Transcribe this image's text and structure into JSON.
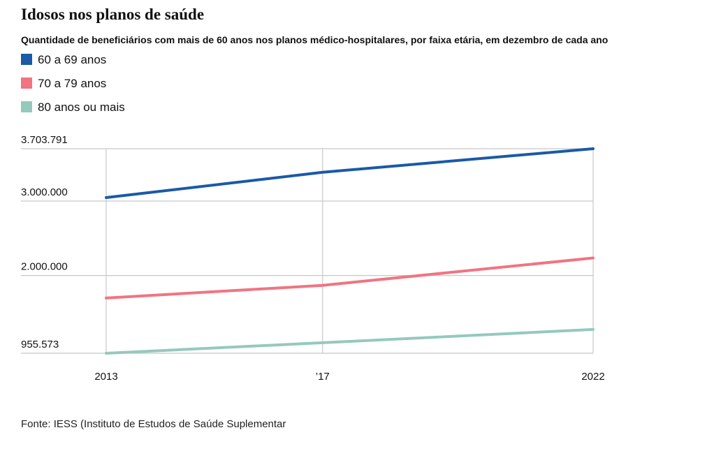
{
  "chart_data": {
    "type": "line",
    "title": "Idosos nos planos de saúde",
    "subtitle": "Quantidade de beneficiários com mais de 60 anos nos planos médico-hospitalares, por faixa etária, em dezembro de cada ano",
    "x": [
      2013,
      2017,
      2022
    ],
    "xlim": [
      2013,
      2022
    ],
    "xticks": [
      2013,
      {
        "value": 2017,
        "label": "’17"
      },
      2022
    ],
    "ylim": [
      955573,
      3703791
    ],
    "yticks": [
      {
        "value": 955573,
        "label": "955.573"
      },
      {
        "value": 2000000,
        "label": "2.000.000"
      },
      {
        "value": 3000000,
        "label": "3.000.000"
      },
      {
        "value": 3703791,
        "label": "3.703.791"
      }
    ],
    "grid": true,
    "series": [
      {
        "name": "60 a 69 anos",
        "color": "#1a5aa6",
        "values": [
          3047000,
          3387000,
          3703791
        ]
      },
      {
        "name": "70 a 79 anos",
        "color": "#f07482",
        "values": [
          1698000,
          1868000,
          2236000
        ]
      },
      {
        "name": "80 anos ou mais",
        "color": "#95c9bd",
        "values": [
          955573,
          1097000,
          1276000
        ]
      }
    ],
    "source": "Fonte: IESS (Instituto de Estudos de Saúde Suplementar"
  }
}
